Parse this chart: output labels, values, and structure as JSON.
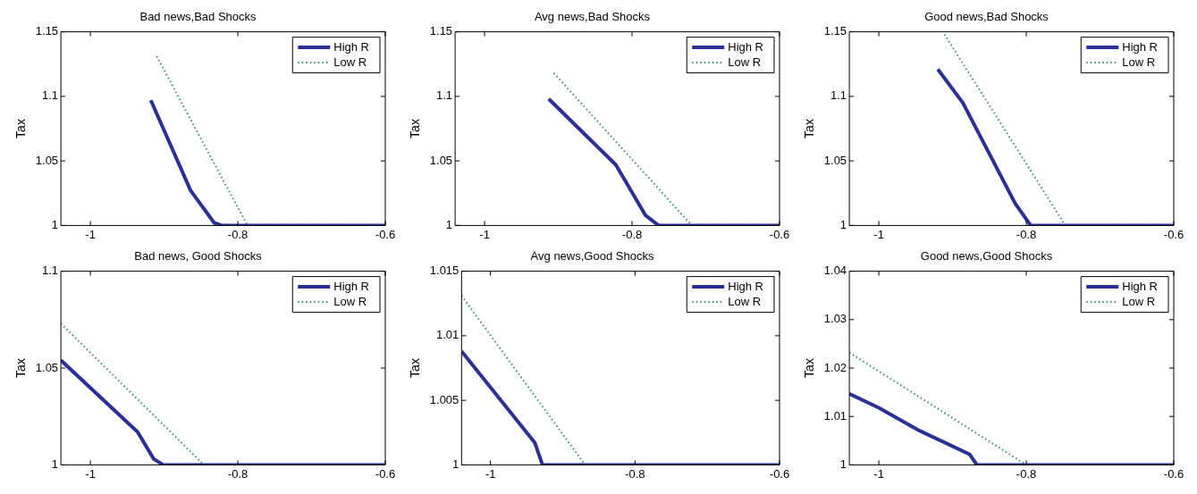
{
  "chart_data": [
    {
      "type": "line",
      "title": "Bad news,Bad Shocks",
      "ylabel": "Tax",
      "xlim": [
        -1.04,
        -0.6
      ],
      "xticks": [
        -1,
        -0.8,
        -0.6
      ],
      "ylim": [
        1,
        1.15
      ],
      "yticks": [
        1,
        1.05,
        1.1,
        1.15
      ],
      "legend": "top right",
      "grid": false,
      "marker": "none",
      "series": [
        {
          "name": "High R",
          "color": "#2b2f96",
          "line_style": "solid",
          "x": [
            -0.918,
            -0.864,
            -0.832,
            -0.822,
            -0.6
          ],
          "values": [
            1.097,
            1.027,
            1.002,
            1,
            1
          ]
        },
        {
          "name": "Low R",
          "color": "#3c8c64",
          "line_style": "dotted",
          "x": [
            -0.91,
            -0.787,
            -0.6
          ],
          "values": [
            1.131,
            1,
            1
          ]
        }
      ]
    },
    {
      "type": "line",
      "title": "Avg news,Bad Shocks",
      "ylabel": "Tax",
      "xlim": [
        -1.04,
        -0.6
      ],
      "xticks": [
        -1,
        -0.8,
        -0.6
      ],
      "ylim": [
        1,
        1.15
      ],
      "yticks": [
        1,
        1.05,
        1.1,
        1.15
      ],
      "legend": "top right",
      "grid": false,
      "marker": "none",
      "series": [
        {
          "name": "High R",
          "color": "#2b2f96",
          "line_style": "solid",
          "x": [
            -0.913,
            -0.822,
            -0.782,
            -0.764,
            -0.6
          ],
          "values": [
            1.098,
            1.047,
            1.008,
            1,
            1
          ]
        },
        {
          "name": "Low R",
          "color": "#3c8c64",
          "line_style": "dotted",
          "x": [
            -0.906,
            -0.719,
            -0.6
          ],
          "values": [
            1.118,
            1,
            1
          ]
        }
      ]
    },
    {
      "type": "line",
      "title": "Good news,Bad Shocks",
      "ylabel": "Tax",
      "xlim": [
        -1.04,
        -0.6
      ],
      "xticks": [
        -1,
        -0.8,
        -0.6
      ],
      "ylim": [
        1,
        1.15
      ],
      "yticks": [
        1,
        1.05,
        1.1,
        1.15
      ],
      "legend": "top right",
      "grid": false,
      "marker": "none",
      "series": [
        {
          "name": "High R",
          "color": "#2b2f96",
          "line_style": "solid",
          "x": [
            -0.92,
            -0.886,
            -0.815,
            -0.794,
            -0.6
          ],
          "values": [
            1.121,
            1.095,
            1.017,
            1,
            1
          ]
        },
        {
          "name": "Low R",
          "color": "#3c8c64",
          "line_style": "dotted",
          "x": [
            -0.911,
            -0.747,
            -0.6
          ],
          "values": [
            1.148,
            1,
            1
          ]
        }
      ]
    },
    {
      "type": "line",
      "title": "Bad news, Good Shocks",
      "ylabel": "Tax",
      "xlim": [
        -1.04,
        -0.6
      ],
      "xticks": [
        -1,
        -0.8,
        -0.6
      ],
      "ylim": [
        1,
        1.1
      ],
      "yticks": [
        1,
        1.05,
        1.1
      ],
      "legend": "top right",
      "grid": false,
      "marker": "none",
      "series": [
        {
          "name": "High R",
          "color": "#2b2f96",
          "line_style": "solid",
          "x": [
            -1.04,
            -0.936,
            -0.914,
            -0.901,
            -0.6
          ],
          "values": [
            1.054,
            1.017,
            1.003,
            1,
            1
          ]
        },
        {
          "name": "Low R",
          "color": "#3c8c64",
          "line_style": "dotted",
          "x": [
            -1.04,
            -0.846,
            -0.6
          ],
          "values": [
            1.073,
            1,
            1
          ]
        }
      ]
    },
    {
      "type": "line",
      "title": "Avg news,Good Shocks",
      "ylabel": "Tax",
      "xlim": [
        -1.04,
        -0.6
      ],
      "xticks": [
        -1,
        -0.8,
        -0.6
      ],
      "ylim": [
        1,
        1.015
      ],
      "yticks": [
        1,
        1.005,
        1.01,
        1.015
      ],
      "legend": "top right",
      "grid": false,
      "marker": "none",
      "series": [
        {
          "name": "High R",
          "color": "#2b2f96",
          "line_style": "solid",
          "x": [
            -1.04,
            -0.9385,
            -0.928,
            -0.6
          ],
          "values": [
            1.0088,
            1.0017,
            1,
            1
          ]
        },
        {
          "name": "Low R",
          "color": "#3c8c64",
          "line_style": "dotted",
          "x": [
            -1.04,
            -0.869,
            -0.6
          ],
          "values": [
            1.0131,
            1,
            1
          ]
        }
      ]
    },
    {
      "type": "line",
      "title": "Good news,Good Shocks",
      "ylabel": "Tax",
      "xlim": [
        -1.04,
        -0.6
      ],
      "xticks": [
        -1,
        -0.8,
        -0.6
      ],
      "ylim": [
        1,
        1.04
      ],
      "yticks": [
        1,
        1.01,
        1.02,
        1.03,
        1.04
      ],
      "legend": "top right",
      "grid": false,
      "marker": "none",
      "series": [
        {
          "name": "High R",
          "color": "#2b2f96",
          "line_style": "solid",
          "x": [
            -1.04,
            -1,
            -0.948,
            -0.877,
            -0.867,
            -0.6
          ],
          "values": [
            1.0147,
            1.0118,
            1.0073,
            1.0022,
            1,
            1
          ]
        },
        {
          "name": "Low R",
          "color": "#3c8c64",
          "line_style": "dotted",
          "x": [
            -1.04,
            -0.8,
            -0.6
          ],
          "values": [
            1.0232,
            1,
            1
          ]
        }
      ]
    }
  ]
}
